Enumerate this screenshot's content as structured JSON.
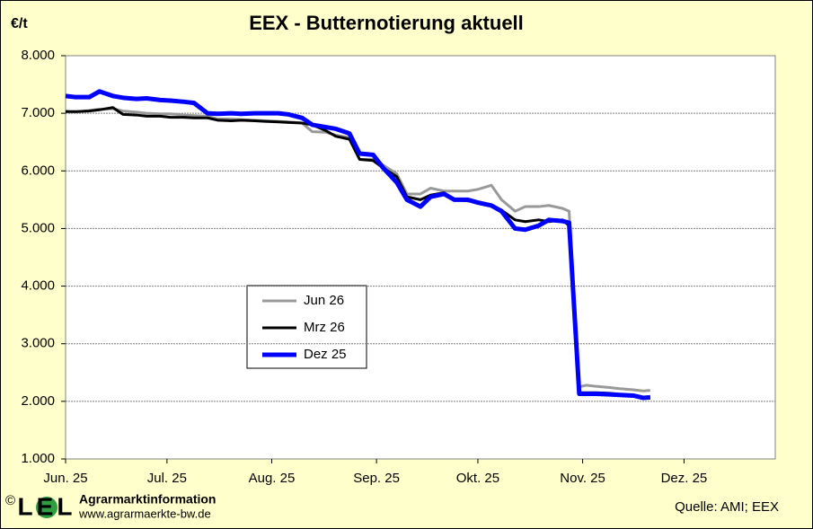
{
  "chart_data": {
    "type": "line",
    "title": "EEX - Butternotierung aktuell",
    "y_label": "€/t",
    "x": [
      0,
      3,
      7,
      10,
      14,
      17,
      21,
      24,
      28,
      31,
      35,
      38,
      42,
      45,
      49,
      52,
      56,
      59,
      63,
      66,
      70,
      73,
      77,
      80,
      84,
      87,
      91,
      94,
      98,
      101,
      105,
      108,
      112,
      115,
      119,
      122,
      126,
      129,
      133,
      136,
      140,
      143,
      147,
      149,
      152,
      154,
      157,
      161,
      164,
      168,
      171,
      173
    ],
    "series": [
      {
        "name": "Jun 26",
        "color": "#999999",
        "width": 3,
        "values": [
          7040,
          7020,
          7050,
          7070,
          7080,
          7040,
          7020,
          7000,
          6990,
          6990,
          6970,
          6960,
          6950,
          6900,
          6900,
          6890,
          6880,
          6870,
          6860,
          6850,
          6830,
          6680,
          6670,
          6620,
          6580,
          6200,
          6200,
          6100,
          5950,
          5600,
          5600,
          5700,
          5650,
          5650,
          5650,
          5680,
          5750,
          5500,
          5300,
          5380,
          5380,
          5400,
          5350,
          5300,
          2250,
          2280,
          2260,
          2240,
          2220,
          2200,
          2180,
          2190
        ]
      },
      {
        "name": "Mrz 26",
        "color": "#000000",
        "width": 3,
        "values": [
          7030,
          7030,
          7040,
          7060,
          7100,
          6980,
          6970,
          6950,
          6950,
          6930,
          6930,
          6920,
          6920,
          6880,
          6870,
          6880,
          6870,
          6860,
          6850,
          6840,
          6830,
          6800,
          6700,
          6600,
          6550,
          6200,
          6180,
          6050,
          5900,
          5550,
          5500,
          5580,
          5620,
          5500,
          5480,
          5460,
          5400,
          5320,
          5150,
          5120,
          5150,
          5120,
          5150,
          5050,
          2150,
          2150,
          2150,
          2140,
          2120,
          2110,
          2070,
          2070
        ]
      },
      {
        "name": "Dez 25",
        "color": "#0000ff",
        "width": 5,
        "values": [
          7300,
          7280,
          7280,
          7380,
          7300,
          7270,
          7250,
          7260,
          7230,
          7220,
          7200,
          7180,
          7000,
          6990,
          7000,
          6990,
          7000,
          7000,
          7000,
          6980,
          6920,
          6800,
          6760,
          6730,
          6650,
          6300,
          6280,
          6050,
          5800,
          5500,
          5380,
          5550,
          5600,
          5500,
          5500,
          5450,
          5400,
          5300,
          5000,
          4980,
          5050,
          5150,
          5130,
          5100,
          2130,
          2130,
          2130,
          2120,
          2110,
          2100,
          2060,
          2070
        ]
      }
    ],
    "xlim": [
      0,
      210
    ],
    "xticks": [
      {
        "value": 0,
        "label": "Jun. 25"
      },
      {
        "value": 30,
        "label": "Jul. 25"
      },
      {
        "value": 61,
        "label": "Aug. 25"
      },
      {
        "value": 92,
        "label": "Sep. 25"
      },
      {
        "value": 122,
        "label": "Okt. 25"
      },
      {
        "value": 153,
        "label": "Nov. 25"
      },
      {
        "value": 183,
        "label": "Dez. 25"
      }
    ],
    "ylim": [
      1000,
      8000
    ],
    "yticks": [
      {
        "value": 1000,
        "label": "1.000"
      },
      {
        "value": 2000,
        "label": "2.000"
      },
      {
        "value": 3000,
        "label": "3.000"
      },
      {
        "value": 4000,
        "label": "4.000"
      },
      {
        "value": 5000,
        "label": "5.000"
      },
      {
        "value": 6000,
        "label": "6.000"
      },
      {
        "value": 7000,
        "label": "7.000"
      },
      {
        "value": 8000,
        "label": "8.000"
      }
    ],
    "grid": true
  },
  "footer": {
    "copyright": "©",
    "logo": "LEL",
    "org": "Agrarmarktinformation",
    "url": "www.agrarmaerkte-bw.de",
    "source": "Quelle:  AMI; EEX"
  }
}
